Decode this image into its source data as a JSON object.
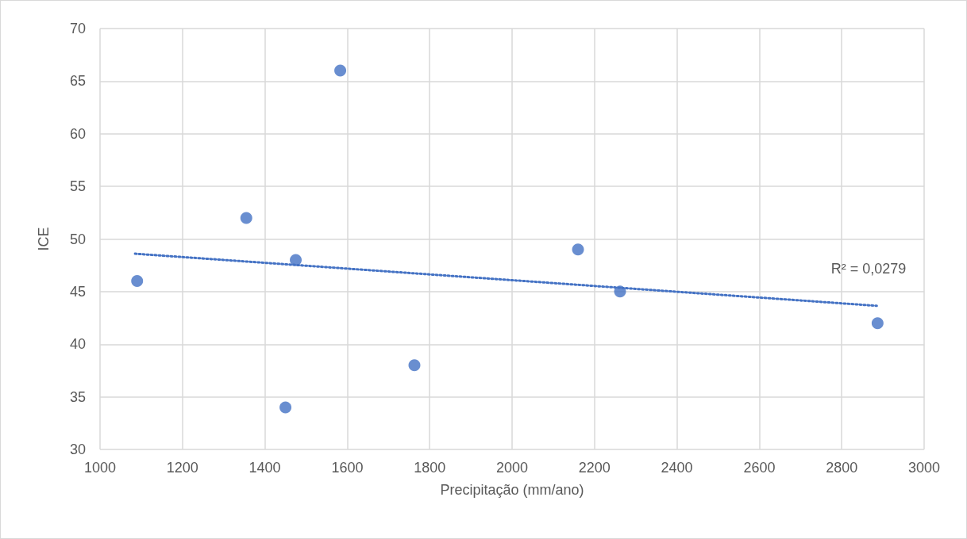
{
  "chart_data": {
    "type": "scatter",
    "xlabel": "Precipitação (mm/ano)",
    "ylabel": "ICE",
    "x": [
      1090,
      1355,
      1475,
      1450,
      1583,
      1763,
      2160,
      2262,
      2887
    ],
    "series": [
      {
        "color": "#4472c4",
        "marker": "circle",
        "values": [
          46,
          52,
          48,
          34,
          66,
          38,
          49,
          45,
          42
        ]
      },
      {
        "type": "line",
        "color": "#4472c4",
        "line_style": "dotted",
        "marker": "none",
        "x": [
          1085,
          2885
        ],
        "values": [
          48.6,
          43.65
        ]
      }
    ],
    "xlim": [
      1000,
      3000
    ],
    "xticks": [
      1000,
      1200,
      1400,
      1600,
      1800,
      2000,
      2200,
      2400,
      2600,
      2800,
      3000
    ],
    "ylim": [
      30,
      70
    ],
    "yticks": [
      30,
      35,
      40,
      45,
      50,
      55,
      60,
      65,
      70
    ],
    "grid": true,
    "annotations": [
      "R² = 0,0279"
    ]
  }
}
